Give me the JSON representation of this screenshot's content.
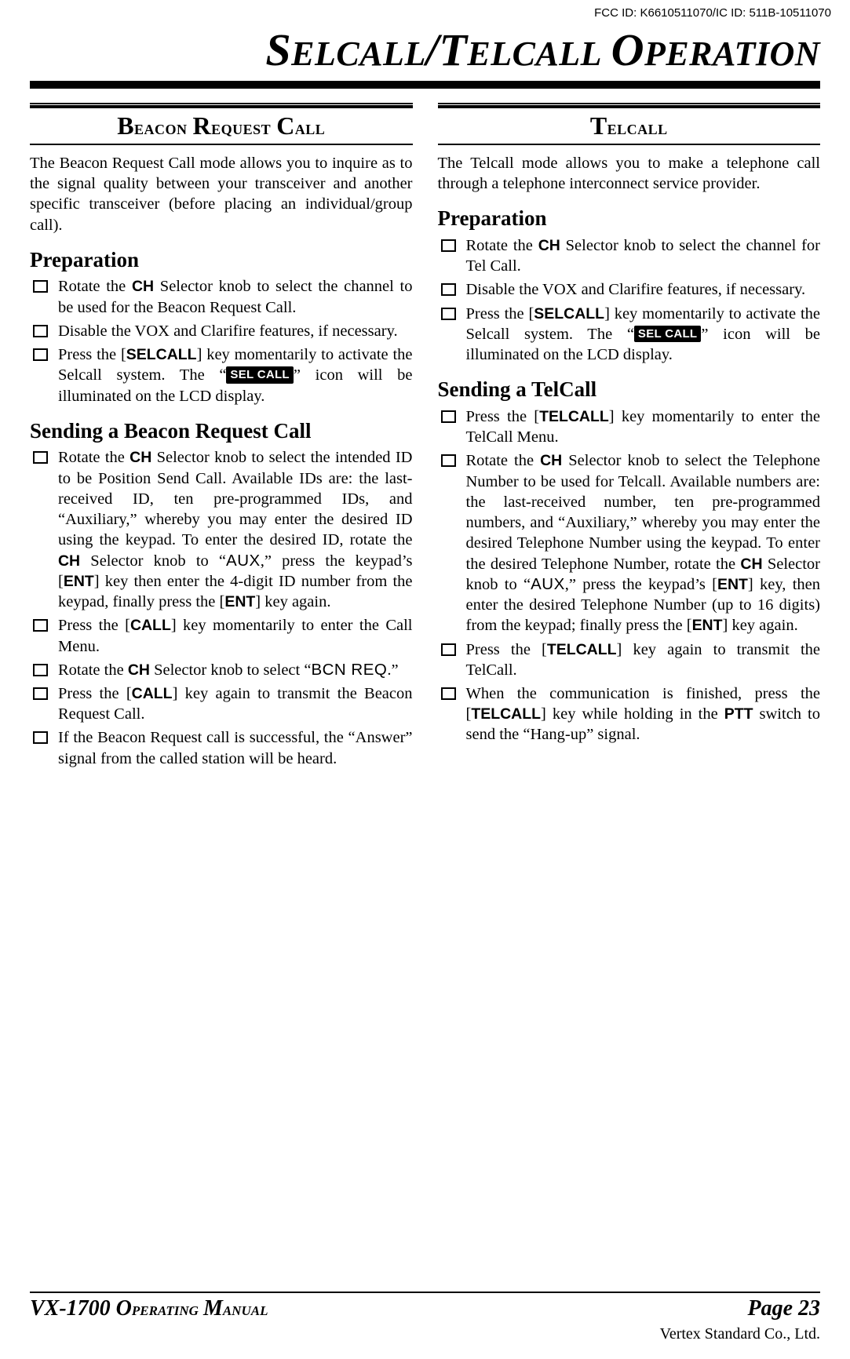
{
  "fcc": "FCC ID: K6610511070/IC ID: 511B-10511070",
  "title_html": "S<small>ELCALL</small>/T<small>ELCALL</small> O<small>PERATION</small>",
  "left": {
    "section_head": "Beacon Request Call",
    "intro": "The Beacon Request Call mode allows you to inquire as to the signal quality between your transceiver and another specific transceiver (before placing an individual/group call).",
    "prep_head": "Preparation",
    "prep_items": [
      "Rotate the <b>CH</b> Selector knob to select the channel to be used for the Beacon Request Call.",
      "Disable the VOX and Clarifire features, if necessary.",
      "Press the [<b>SELCALL</b>] key momentarily to activate the Selcall system. The “<icon>SEL CALL</icon>” icon will be illuminated on the LCD display."
    ],
    "send_head": "Sending a Beacon Request Call",
    "send_items": [
      "Rotate the <b>CH</b> Selector knob to select the intended ID to be Position Send Call. Available IDs are: the last-received ID, ten pre-programmed IDs, and “Auxiliary,” whereby you may enter the desired ID using the keypad. To enter the desired ID, rotate the <b>CH</b> Selector knob to “<lcd>AUX</lcd>,” press the keypad’s [<b>ENT</b>] key then enter the 4-digit ID number from the keypad, finally press the [<b>ENT</b>] key again.",
      "Press the [<b>CALL</b>] key momentarily to enter the Call Menu.",
      "Rotate the <b>CH</b> Selector knob to select “<lcd>BCN REQ</lcd>.”",
      "Press the [<b>CALL</b>] key again to transmit the Beacon Request Call.",
      "If the Beacon Request call is successful, the “Answer” signal from the called station will be heard."
    ]
  },
  "right": {
    "section_head": "Telcall",
    "intro": "The Telcall mode allows you to make a telephone call through a telephone interconnect service provider.",
    "prep_head": "Preparation",
    "prep_items": [
      "Rotate the <b>CH</b> Selector knob to select the channel for Tel Call.",
      "Disable the VOX and Clarifire features, if necessary.",
      "Press the [<b>SELCALL</b>] key momentarily to activate the Selcall system. The “<icon>SEL CALL</icon>” icon will be illuminated on the LCD display."
    ],
    "send_head": "Sending a TelCall",
    "send_items": [
      "Press the [<b>TELCALL</b>] key momentarily to enter the TelCall Menu.",
      "Rotate the <b>CH</b> Selector knob to select the Telephone Number to be used for  Telcall. Available numbers are: the last-received number, ten pre-programmed numbers, and “Auxiliary,” whereby you may enter the desired Telephone Number using the keypad. To enter the desired Telephone Number, rotate the <b>CH</b> Selector knob to “<lcd>AUX</lcd>,” press the keypad’s [<b>ENT</b>] key, then enter the desired Telephone Number (up to 16 digits) from the keypad; finally press the [<b>ENT</b>] key again.",
      "Press the [<b>TELCALL</b>] key again to transmit the TelCall.",
      "When the communication is finished, press the [<b>TELCALL</b>] key while holding in the <b>PTT</b> switch to send the “Hang-up” signal."
    ]
  },
  "footer": {
    "manual": "VX-1700 Operating Manual",
    "page": "Page 23",
    "vertex": "Vertex Standard Co., Ltd."
  }
}
